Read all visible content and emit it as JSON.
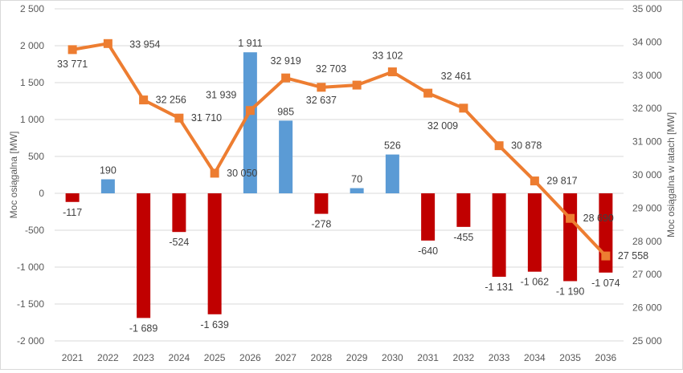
{
  "chart_data": {
    "type": "bar+line",
    "categories": [
      "2021",
      "2022",
      "2023",
      "2024",
      "2025",
      "2026",
      "2027",
      "2028",
      "2029",
      "2030",
      "2031",
      "2032",
      "2033",
      "2034",
      "2035",
      "2036"
    ],
    "bar_values": [
      -117,
      190,
      -1689,
      -524,
      -1639,
      1911,
      985,
      -278,
      70,
      526,
      -640,
      -455,
      -1131,
      -1062,
      -1190,
      -1074
    ],
    "bar_labels": [
      "-117",
      "190",
      "-1 689",
      "-524",
      "-1 639",
      "1 911",
      "985",
      "-278",
      "70",
      "526",
      "-640",
      "-455",
      "-1 131",
      "-1 062",
      "-1 190",
      "-1 074"
    ],
    "line_values": [
      33771,
      33954,
      32256,
      31710,
      30050,
      31939,
      32919,
      32637,
      32703,
      33102,
      32461,
      32009,
      30878,
      29817,
      28690,
      27558
    ],
    "line_labels": [
      "33 771",
      "33 954",
      "32 256",
      "31 710",
      "30 050",
      "31 939",
      "32 919",
      "32 637",
      "32 703",
      "33 102",
      "32 461",
      "32 009",
      "30 878",
      "29 817",
      "28 690",
      "27 558"
    ],
    "y_left": {
      "title": "Moc osiągalna [MW]",
      "ylim": [
        -2000,
        2500
      ],
      "ticks": [
        "-2 000",
        "-1 500",
        "-1 000",
        "-500",
        "0",
        "500",
        "1 000",
        "1 500",
        "2 000",
        "2 500"
      ]
    },
    "y_right": {
      "title": "Moc osiągalna w latach [MW]",
      "ylim": [
        25000,
        35000
      ],
      "ticks": [
        "25 000",
        "26 000",
        "27 000",
        "28 000",
        "29 000",
        "30 000",
        "31 000",
        "32 000",
        "33 000",
        "34 000",
        "35 000"
      ]
    },
    "colors": {
      "positive_bar": "#5b9bd5",
      "negative_bar": "#c00000",
      "line": "#ed7d31",
      "grid": "#d9d9d9"
    },
    "grid": true
  }
}
